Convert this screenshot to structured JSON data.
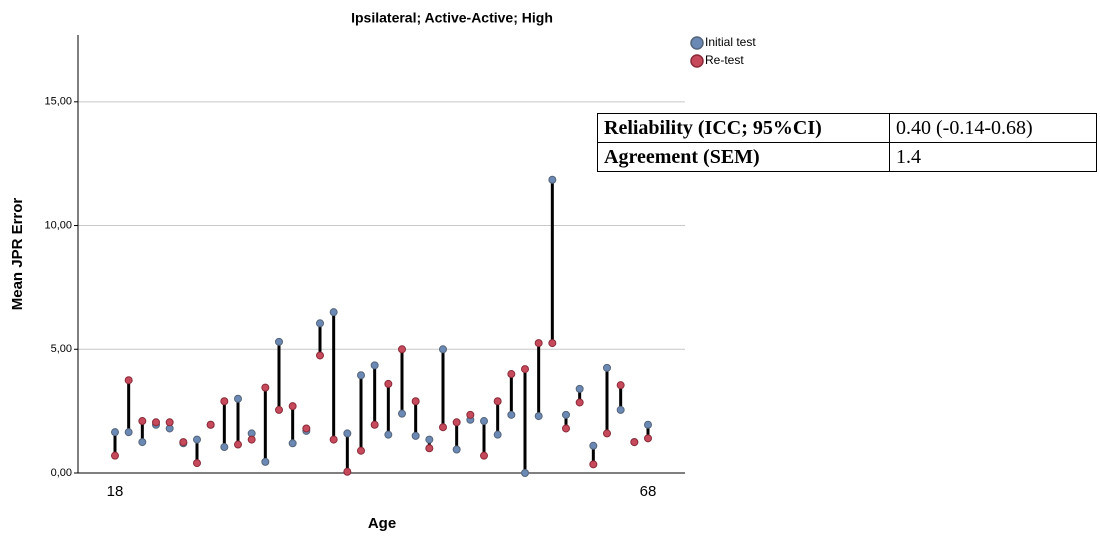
{
  "chart_data": {
    "type": "dumbbell",
    "title": "Ipsilateral; Active-Active; High",
    "x_label": "Age",
    "y_label": "Mean JPR Error",
    "categories": [
      "18",
      null,
      null,
      null,
      null,
      null,
      null,
      null,
      null,
      null,
      null,
      null,
      null,
      null,
      null,
      null,
      null,
      null,
      null,
      null,
      null,
      null,
      null,
      null,
      null,
      null,
      null,
      null,
      null,
      null,
      null,
      null,
      null,
      null,
      null,
      null,
      null,
      null,
      null,
      "68"
    ],
    "series": [
      {
        "name": "Initial test",
        "color": "#6a89b4",
        "stroke": "#55657a",
        "values": [
          1.65,
          1.65,
          1.25,
          1.95,
          1.8,
          1.2,
          1.35,
          1.95,
          1.05,
          3.0,
          1.6,
          0.45,
          5.3,
          1.2,
          1.7,
          6.05,
          6.5,
          1.6,
          3.95,
          4.35,
          1.55,
          2.4,
          1.5,
          1.35,
          5.0,
          0.95,
          2.15,
          2.1,
          1.55,
          2.35,
          0.0,
          2.3,
          11.85,
          2.35,
          3.4,
          1.1,
          4.25,
          2.55,
          1.25,
          1.95
        ]
      },
      {
        "name": "Re-test",
        "color": "#c64a5c",
        "stroke": "#8a2a38",
        "values": [
          0.7,
          3.75,
          2.1,
          2.05,
          2.05,
          1.25,
          0.4,
          1.95,
          2.9,
          1.15,
          1.35,
          3.45,
          2.55,
          2.7,
          1.8,
          4.75,
          1.35,
          0.05,
          0.9,
          1.95,
          3.6,
          5.0,
          2.9,
          1.0,
          1.85,
          2.05,
          2.35,
          0.7,
          2.9,
          4.0,
          4.2,
          5.25,
          5.25,
          1.8,
          2.85,
          0.35,
          1.6,
          3.55,
          1.25,
          1.4
        ]
      }
    ],
    "ylim": [
      0,
      17.7
    ],
    "yticks": [
      {
        "value": 0,
        "label": "0,00"
      },
      {
        "value": 5,
        "label": "5,00"
      },
      {
        "value": 10,
        "label": "10,00"
      },
      {
        "value": 15,
        "label": "15,00"
      }
    ],
    "grid": true
  },
  "table": {
    "rows": [
      [
        "Reliability (ICC; 95%CI)",
        "0.40 (-0.14-0.68)"
      ],
      [
        "Agreement (SEM)",
        "1.4"
      ]
    ]
  }
}
